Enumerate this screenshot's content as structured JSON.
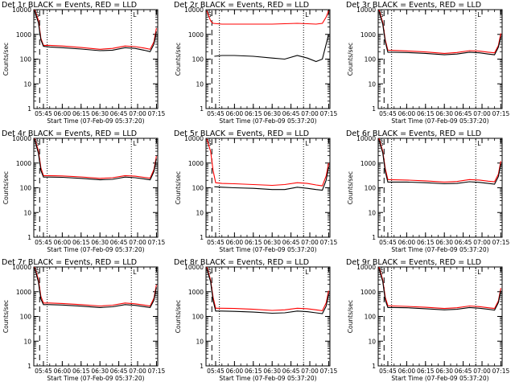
{
  "chart_data": {
    "type": "line",
    "xlabel": "Start Time (07-Feb-09 05:37:20)",
    "ylabel": "Counts/sec",
    "yscale": "log",
    "ylim": [
      1,
      10000
    ],
    "yticks": [
      "1",
      "10",
      "100",
      "1000",
      "10000"
    ],
    "xlim": [
      "05:37:20",
      "07:16:00"
    ],
    "xticks": [
      "05:45",
      "06:00",
      "06:15",
      "06:30",
      "06:45",
      "07:00",
      "07:15"
    ],
    "marker_labels": [
      "S",
      "L"
    ],
    "series_colors": {
      "events": "#000000",
      "lld": "#ff0000"
    },
    "vlines": [
      {
        "time": "05:42",
        "style": "dashed"
      },
      {
        "time": "05:48",
        "style": "dotted"
      },
      {
        "time": "06:55",
        "style": "dotted"
      }
    ],
    "panels": [
      {
        "title": "Det 1r BLACK = Events, RED = LLD",
        "events": [
          [
            "05:38",
            9000
          ],
          [
            "05:41",
            3000
          ],
          [
            "05:43",
            600
          ],
          [
            "05:45",
            330
          ],
          [
            "05:50",
            310
          ],
          [
            "06:00",
            290
          ],
          [
            "06:15",
            255
          ],
          [
            "06:30",
            220
          ],
          [
            "06:40",
            230
          ],
          [
            "06:50",
            290
          ],
          [
            "06:58",
            270
          ],
          [
            "07:05",
            230
          ],
          [
            "07:10",
            200
          ],
          [
            "07:13",
            400
          ],
          [
            "07:15",
            1300
          ]
        ],
        "lld": [
          [
            "05:38",
            9800
          ],
          [
            "05:41",
            3800
          ],
          [
            "05:43",
            700
          ],
          [
            "05:45",
            360
          ],
          [
            "05:50",
            360
          ],
          [
            "06:00",
            340
          ],
          [
            "06:15",
            295
          ],
          [
            "06:30",
            250
          ],
          [
            "06:40",
            270
          ],
          [
            "06:50",
            340
          ],
          [
            "06:58",
            320
          ],
          [
            "07:05",
            280
          ],
          [
            "07:10",
            250
          ],
          [
            "07:13",
            500
          ],
          [
            "07:15",
            1800
          ]
        ]
      },
      {
        "title": "Det 2r BLACK = Events, RED = LLD",
        "events": [
          [
            "05:44",
            130
          ],
          [
            "05:50",
            140
          ],
          [
            "06:00",
            140
          ],
          [
            "06:15",
            130
          ],
          [
            "06:30",
            110
          ],
          [
            "06:40",
            100
          ],
          [
            "06:50",
            140
          ],
          [
            "06:58",
            110
          ],
          [
            "07:05",
            80
          ],
          [
            "07:10",
            100
          ],
          [
            "07:13",
            400
          ],
          [
            "07:15",
            1000
          ]
        ],
        "lld": [
          [
            "05:38",
            9000
          ],
          [
            "05:41",
            3500
          ],
          [
            "05:43",
            2800
          ],
          [
            "05:50",
            2600
          ],
          [
            "06:00",
            2600
          ],
          [
            "06:15",
            2600
          ],
          [
            "06:30",
            2600
          ],
          [
            "06:40",
            2700
          ],
          [
            "06:50",
            2800
          ],
          [
            "06:58",
            2700
          ],
          [
            "07:05",
            2600
          ],
          [
            "07:10",
            2800
          ],
          [
            "07:13",
            5000
          ],
          [
            "07:15",
            9000
          ]
        ]
      },
      {
        "title": "Det 3r BLACK = Events, RED = LLD",
        "events": [
          [
            "05:38",
            8500
          ],
          [
            "05:41",
            2500
          ],
          [
            "05:43",
            500
          ],
          [
            "05:45",
            190
          ],
          [
            "05:50",
            190
          ],
          [
            "06:00",
            185
          ],
          [
            "06:15",
            170
          ],
          [
            "06:30",
            150
          ],
          [
            "06:40",
            160
          ],
          [
            "06:50",
            190
          ],
          [
            "06:58",
            180
          ],
          [
            "07:05",
            160
          ],
          [
            "07:10",
            150
          ],
          [
            "07:13",
            300
          ],
          [
            "07:15",
            800
          ]
        ],
        "lld": [
          [
            "05:38",
            9800
          ],
          [
            "05:41",
            3000
          ],
          [
            "05:43",
            600
          ],
          [
            "05:45",
            230
          ],
          [
            "05:50",
            225
          ],
          [
            "06:00",
            215
          ],
          [
            "06:15",
            195
          ],
          [
            "06:30",
            170
          ],
          [
            "06:40",
            185
          ],
          [
            "06:50",
            220
          ],
          [
            "06:58",
            210
          ],
          [
            "07:05",
            190
          ],
          [
            "07:10",
            180
          ],
          [
            "07:13",
            350
          ],
          [
            "07:15",
            1100
          ]
        ]
      },
      {
        "title": "Det 4r BLACK = Events, RED = LLD",
        "events": [
          [
            "05:38",
            9000
          ],
          [
            "05:41",
            2500
          ],
          [
            "05:43",
            500
          ],
          [
            "05:45",
            270
          ],
          [
            "05:50",
            270
          ],
          [
            "06:00",
            265
          ],
          [
            "06:15",
            240
          ],
          [
            "06:30",
            210
          ],
          [
            "06:40",
            220
          ],
          [
            "06:50",
            270
          ],
          [
            "06:58",
            255
          ],
          [
            "07:05",
            230
          ],
          [
            "07:10",
            210
          ],
          [
            "07:13",
            450
          ],
          [
            "07:15",
            1500
          ]
        ],
        "lld": [
          [
            "05:38",
            9800
          ],
          [
            "05:41",
            3200
          ],
          [
            "05:43",
            650
          ],
          [
            "05:45",
            310
          ],
          [
            "05:50",
            310
          ],
          [
            "06:00",
            300
          ],
          [
            "06:15",
            275
          ],
          [
            "06:30",
            240
          ],
          [
            "06:40",
            255
          ],
          [
            "06:50",
            310
          ],
          [
            "06:58",
            295
          ],
          [
            "07:05",
            265
          ],
          [
            "07:10",
            245
          ],
          [
            "07:13",
            550
          ],
          [
            "07:15",
            1900
          ]
        ]
      },
      {
        "title": "Det 5r BLACK = Events, RED = LLD",
        "events": [
          [
            "05:44",
            110
          ],
          [
            "05:50",
            105
          ],
          [
            "06:00",
            100
          ],
          [
            "06:15",
            95
          ],
          [
            "06:30",
            85
          ],
          [
            "06:40",
            85
          ],
          [
            "06:50",
            105
          ],
          [
            "06:58",
            95
          ],
          [
            "07:05",
            85
          ],
          [
            "07:10",
            80
          ],
          [
            "07:13",
            200
          ],
          [
            "07:15",
            700
          ]
        ],
        "lld": [
          [
            "05:38",
            9500
          ],
          [
            "05:41",
            3000
          ],
          [
            "05:43",
            500
          ],
          [
            "05:45",
            160
          ],
          [
            "05:50",
            150
          ],
          [
            "06:00",
            145
          ],
          [
            "06:15",
            135
          ],
          [
            "06:30",
            125
          ],
          [
            "06:40",
            135
          ],
          [
            "06:50",
            160
          ],
          [
            "06:58",
            150
          ],
          [
            "07:05",
            130
          ],
          [
            "07:10",
            120
          ],
          [
            "07:13",
            300
          ],
          [
            "07:15",
            1000
          ]
        ]
      },
      {
        "title": "Det 6r BLACK = Events, RED = LLD",
        "events": [
          [
            "05:38",
            8500
          ],
          [
            "05:41",
            2500
          ],
          [
            "05:43",
            450
          ],
          [
            "05:45",
            170
          ],
          [
            "05:50",
            170
          ],
          [
            "06:00",
            170
          ],
          [
            "06:15",
            160
          ],
          [
            "06:30",
            145
          ],
          [
            "06:40",
            150
          ],
          [
            "06:50",
            175
          ],
          [
            "06:58",
            165
          ],
          [
            "07:05",
            150
          ],
          [
            "07:10",
            140
          ],
          [
            "07:13",
            280
          ],
          [
            "07:15",
            900
          ]
        ],
        "lld": [
          [
            "05:38",
            9800
          ],
          [
            "05:41",
            3000
          ],
          [
            "05:43",
            600
          ],
          [
            "05:45",
            215
          ],
          [
            "05:50",
            210
          ],
          [
            "06:00",
            205
          ],
          [
            "06:15",
            190
          ],
          [
            "06:30",
            170
          ],
          [
            "06:40",
            180
          ],
          [
            "06:50",
            215
          ],
          [
            "06:58",
            205
          ],
          [
            "07:05",
            185
          ],
          [
            "07:10",
            175
          ],
          [
            "07:13",
            350
          ],
          [
            "07:15",
            1200
          ]
        ]
      },
      {
        "title": "Det 7r BLACK = Events, RED = LLD",
        "events": [
          [
            "05:38",
            9000
          ],
          [
            "05:41",
            2500
          ],
          [
            "05:43",
            500
          ],
          [
            "05:45",
            300
          ],
          [
            "05:50",
            300
          ],
          [
            "06:00",
            290
          ],
          [
            "06:15",
            260
          ],
          [
            "06:30",
            230
          ],
          [
            "06:40",
            245
          ],
          [
            "06:50",
            300
          ],
          [
            "06:58",
            280
          ],
          [
            "07:05",
            250
          ],
          [
            "07:10",
            230
          ],
          [
            "07:13",
            450
          ],
          [
            "07:15",
            1500
          ]
        ],
        "lld": [
          [
            "05:38",
            9800
          ],
          [
            "05:41",
            3200
          ],
          [
            "05:43",
            650
          ],
          [
            "05:45",
            350
          ],
          [
            "05:50",
            350
          ],
          [
            "06:00",
            335
          ],
          [
            "06:15",
            300
          ],
          [
            "06:30",
            265
          ],
          [
            "06:40",
            285
          ],
          [
            "06:50",
            350
          ],
          [
            "06:58",
            325
          ],
          [
            "07:05",
            290
          ],
          [
            "07:10",
            265
          ],
          [
            "07:13",
            550
          ],
          [
            "07:15",
            1900
          ]
        ]
      },
      {
        "title": "Det 8r BLACK = Events, RED = LLD",
        "events": [
          [
            "05:38",
            8500
          ],
          [
            "05:41",
            2500
          ],
          [
            "05:43",
            450
          ],
          [
            "05:45",
            165
          ],
          [
            "05:50",
            165
          ],
          [
            "06:00",
            160
          ],
          [
            "06:15",
            150
          ],
          [
            "06:30",
            135
          ],
          [
            "06:40",
            140
          ],
          [
            "06:50",
            165
          ],
          [
            "06:58",
            155
          ],
          [
            "07:05",
            140
          ],
          [
            "07:10",
            130
          ],
          [
            "07:13",
            260
          ],
          [
            "07:15",
            800
          ]
        ],
        "lld": [
          [
            "05:38",
            9800
          ],
          [
            "05:41",
            3000
          ],
          [
            "05:43",
            600
          ],
          [
            "05:45",
            215
          ],
          [
            "05:50",
            215
          ],
          [
            "06:00",
            210
          ],
          [
            "06:15",
            195
          ],
          [
            "06:30",
            175
          ],
          [
            "06:40",
            185
          ],
          [
            "06:50",
            215
          ],
          [
            "06:58",
            205
          ],
          [
            "07:05",
            185
          ],
          [
            "07:10",
            170
          ],
          [
            "07:13",
            350
          ],
          [
            "07:15",
            1100
          ]
        ]
      },
      {
        "title": "Det 9r BLACK = Events, RED = LLD",
        "events": [
          [
            "05:38",
            8500
          ],
          [
            "05:41",
            2500
          ],
          [
            "05:43",
            450
          ],
          [
            "05:45",
            230
          ],
          [
            "05:50",
            230
          ],
          [
            "06:00",
            225
          ],
          [
            "06:15",
            205
          ],
          [
            "06:30",
            185
          ],
          [
            "06:40",
            195
          ],
          [
            "06:50",
            230
          ],
          [
            "06:58",
            215
          ],
          [
            "07:05",
            195
          ],
          [
            "07:10",
            180
          ],
          [
            "07:13",
            360
          ],
          [
            "07:15",
            1100
          ]
        ],
        "lld": [
          [
            "05:38",
            9800
          ],
          [
            "05:41",
            3000
          ],
          [
            "05:43",
            600
          ],
          [
            "05:45",
            270
          ],
          [
            "05:50",
            265
          ],
          [
            "06:00",
            255
          ],
          [
            "06:15",
            235
          ],
          [
            "06:30",
            210
          ],
          [
            "06:40",
            225
          ],
          [
            "06:50",
            265
          ],
          [
            "06:58",
            250
          ],
          [
            "07:05",
            225
          ],
          [
            "07:10",
            210
          ],
          [
            "07:13",
            420
          ],
          [
            "07:15",
            1400
          ]
        ]
      }
    ]
  }
}
